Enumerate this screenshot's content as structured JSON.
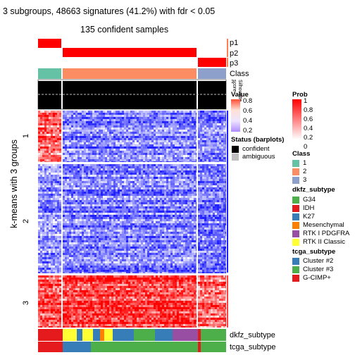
{
  "title": "3 subgroups, 48663 signatures (41.2%) with fdr < 0.05",
  "subtitle": "135 confident samples",
  "y_axis_label": "k-means with 3 groups",
  "row_group_labels": [
    "1",
    "2",
    "3"
  ],
  "annotation_labels": [
    "p1",
    "p2",
    "p3",
    "Class"
  ],
  "bottom_annotation_labels": [
    "dkfz_subtype",
    "tcga_subtype"
  ],
  "silhouette_label": "Silhouette\nscore",
  "silhouette_ticks": [
    "1",
    "0"
  ],
  "legends": {
    "value": {
      "title": "Value",
      "ticks": [
        "0.8",
        "0.6",
        "0.4",
        "0.2"
      ]
    },
    "prob": {
      "title": "Prob",
      "ticks": [
        "1",
        "0.8",
        "0.6",
        "0.4",
        "0.2",
        "0"
      ]
    },
    "status": {
      "title": "Status (barplots)",
      "items": [
        {
          "label": "confident",
          "color": "#000000"
        },
        {
          "label": "ambiguous",
          "color": "#BEBEBE"
        }
      ]
    },
    "class": {
      "title": "Class",
      "items": [
        {
          "label": "1",
          "color": "#66C2A5"
        },
        {
          "label": "2",
          "color": "#FC8D62"
        },
        {
          "label": "3",
          "color": "#8DA0CB"
        }
      ]
    },
    "dkfz": {
      "title": "dkfz_subtype",
      "items": [
        {
          "label": "G34",
          "color": "#4DAF4A"
        },
        {
          "label": "IDH",
          "color": "#E41A1C"
        },
        {
          "label": "K27",
          "color": "#377EB8"
        },
        {
          "label": "Mesenchymal",
          "color": "#FF7F00"
        },
        {
          "label": "RTK I PDGFRA",
          "color": "#984EA3"
        },
        {
          "label": "RTK II Classic",
          "color": "#FFFF33"
        }
      ]
    },
    "tcga": {
      "title": "tcga_subtype",
      "items": [
        {
          "label": "Cluster #2",
          "color": "#377EB8"
        },
        {
          "label": "Cluster #3",
          "color": "#4DAF4A"
        },
        {
          "label": "G-CIMP+",
          "color": "#E41A1C"
        }
      ]
    }
  },
  "chart_data": {
    "type": "heatmap",
    "row_groups": [
      "1",
      "2",
      "3"
    ],
    "column_classes": [
      "1",
      "2",
      "3"
    ],
    "class_sample_share": {
      "1": 0.15,
      "2": 0.76,
      "3": 0.09
    },
    "row_group_share": {
      "1": 0.27,
      "2": 0.5,
      "3": 0.23
    },
    "mean_value_by_block": [
      [
        0.78,
        0.2,
        0.22
      ],
      [
        0.25,
        0.2,
        0.2
      ],
      [
        0.85,
        0.88,
        0.8
      ]
    ],
    "value_range": [
      0,
      1
    ],
    "color_scale": {
      "low": "#2020FF",
      "mid": "#FFFFFF",
      "high": "#FF0000"
    },
    "prob_color_scale": {
      "low": "#FFFFFF",
      "high": "#FF0000"
    },
    "confident_samples": 135
  },
  "colors": {
    "prob_high": "#FF0000",
    "class1": "#66C2A5",
    "class2": "#FC8D62",
    "class3": "#8DA0CB"
  }
}
